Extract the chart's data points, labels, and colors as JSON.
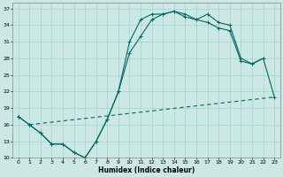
{
  "xlabel": "Humidex (Indice chaleur)",
  "bg_color": "#cce8e4",
  "grid_color": "#99cccc",
  "line_color": "#006666",
  "xlim": [
    -0.5,
    23.5
  ],
  "ylim": [
    10,
    38
  ],
  "yticks": [
    10,
    13,
    16,
    19,
    22,
    25,
    28,
    31,
    34,
    37
  ],
  "xticks": [
    0,
    1,
    2,
    3,
    4,
    5,
    6,
    7,
    8,
    9,
    10,
    11,
    12,
    13,
    14,
    15,
    16,
    17,
    18,
    19,
    20,
    21,
    22,
    23
  ],
  "line1_x": [
    0,
    1,
    2,
    3,
    4,
    5,
    6,
    7,
    8,
    9,
    10,
    11,
    12,
    13,
    14,
    15,
    16,
    17,
    18,
    19,
    20,
    21,
    22
  ],
  "line1_y": [
    17.5,
    16,
    14.5,
    12.5,
    12.5,
    11,
    10,
    13,
    17,
    22,
    31,
    35,
    36,
    36,
    36.5,
    36,
    35,
    36,
    34.5,
    34,
    28,
    27,
    28
  ],
  "line2_x": [
    0,
    1,
    2,
    3,
    4,
    5,
    6,
    7,
    8,
    9,
    10,
    11,
    12,
    13,
    14,
    15,
    16,
    17,
    18,
    19,
    20,
    21,
    22,
    23
  ],
  "line2_y": [
    17.5,
    16,
    14.5,
    12.5,
    12.5,
    11,
    10,
    13,
    17,
    22,
    29,
    32,
    35,
    36,
    36.5,
    35.5,
    35,
    34.5,
    33.5,
    33,
    27.5,
    27,
    28,
    21
  ],
  "line3_x": [
    1,
    23
  ],
  "line3_y": [
    16,
    21
  ],
  "line3_dashes": [
    4,
    3
  ]
}
